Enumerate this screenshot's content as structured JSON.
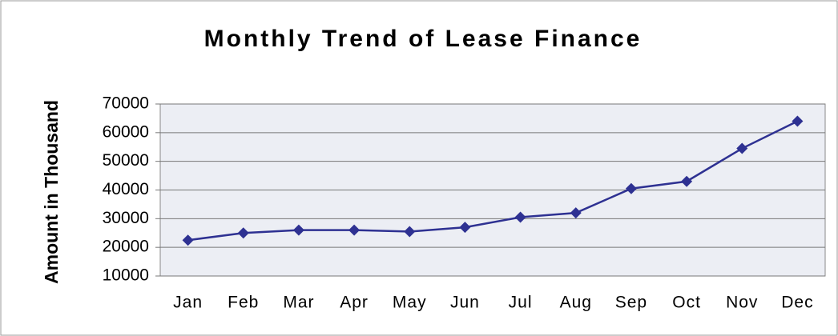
{
  "chart_data": {
    "type": "line",
    "title": "Monthly Trend of Lease Finance",
    "y_label": "Amount in Thousand",
    "categories": [
      "Jan",
      "Feb",
      "Mar",
      "Apr",
      "May",
      "Jun",
      "Jul",
      "Aug",
      "Sep",
      "Oct",
      "Nov",
      "Dec"
    ],
    "series": [
      {
        "name": "Lease Finance",
        "color": "#2e3192",
        "values": [
          22500,
          25000,
          26000,
          26000,
          25500,
          27000,
          30500,
          32000,
          40500,
          43000,
          54500,
          64000
        ]
      }
    ],
    "ylim": [
      10000,
      70000
    ],
    "yticks": [
      10000,
      20000,
      30000,
      40000,
      50000,
      60000,
      70000
    ],
    "grid": true
  }
}
